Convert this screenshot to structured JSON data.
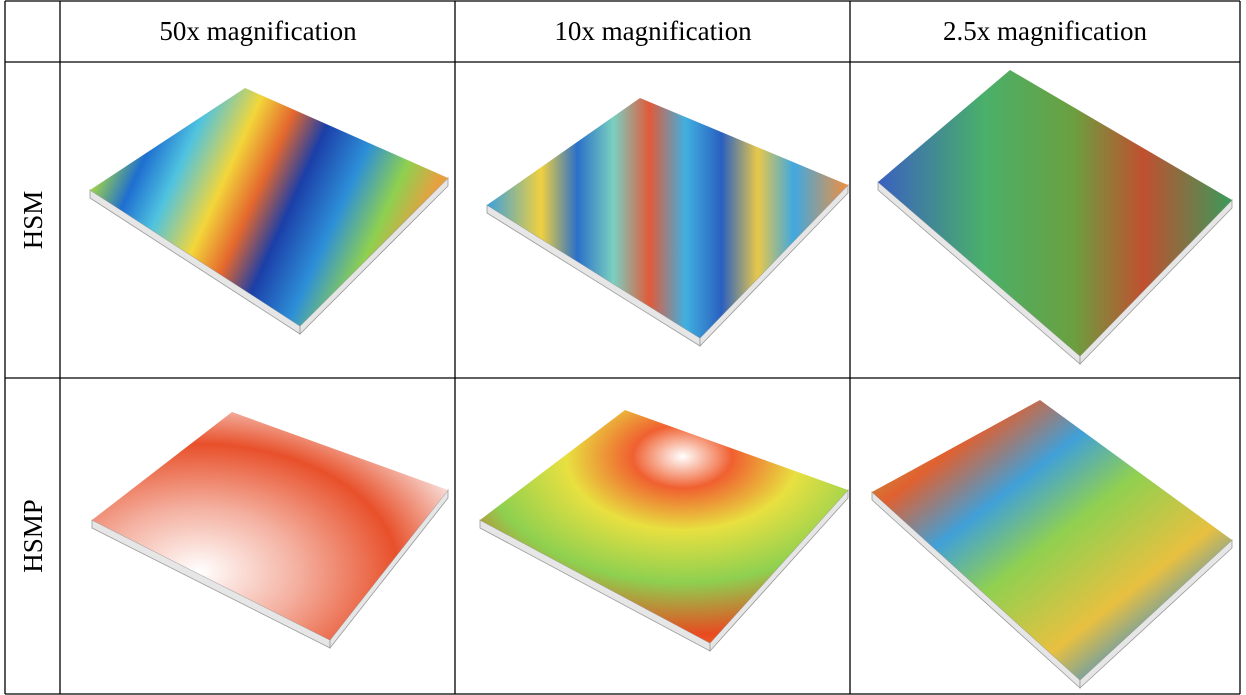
{
  "table": {
    "header": [
      "50x magnification",
      "10x magnification",
      "2.5x magnification"
    ],
    "rows": [
      {
        "label": "HSM"
      },
      {
        "label": "HSMP"
      }
    ]
  }
}
